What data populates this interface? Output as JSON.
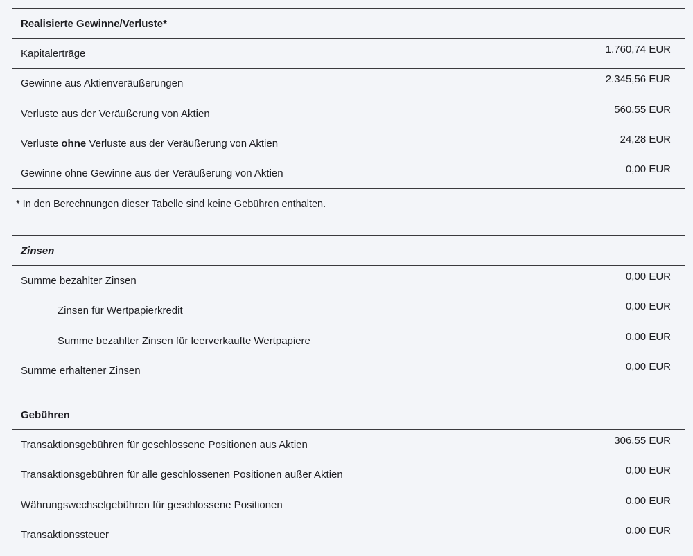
{
  "realized": {
    "title": "Realisierte Gewinne/Verluste*",
    "rows": [
      {
        "label": "Kapitalerträge",
        "value": "1.760,74 EUR"
      },
      {
        "label": "Gewinne aus Aktienveräußerungen",
        "value": "2.345,56 EUR"
      },
      {
        "label": "Verluste aus der Veräußerung von Aktien",
        "value": "560,55 EUR"
      },
      {
        "label_pre": "Verluste ",
        "label_bold": "ohne",
        "label_post": " Verluste aus der Veräußerung von Aktien",
        "value": "24,28 EUR"
      },
      {
        "label": "Gewinne ohne Gewinne aus der Veräußerung von Aktien",
        "value": "0,00 EUR"
      }
    ],
    "footnote": "* In den Berechnungen dieser Tabelle sind keine Gebühren enthalten."
  },
  "interest": {
    "title": "Zinsen",
    "rows": [
      {
        "label": "Summe bezahlter Zinsen",
        "value": "0,00 EUR"
      },
      {
        "label": "Zinsen für Wertpapierkredit",
        "value": "0,00 EUR"
      },
      {
        "label": "Summe bezahlter Zinsen für leerverkaufte Wertpapiere",
        "value": "0,00 EUR"
      },
      {
        "label": "Summe erhaltener Zinsen",
        "value": "0,00 EUR"
      }
    ]
  },
  "fees": {
    "title": "Gebühren",
    "rows": [
      {
        "label": "Transaktionsgebühren für geschlossene Positionen aus Aktien",
        "value": "306,55 EUR"
      },
      {
        "label": "Transaktionsgebühren für alle geschlossenen Positionen außer Aktien",
        "value": "0,00 EUR"
      },
      {
        "label": "Währungswechselgebühren für geschlossene Positionen",
        "value": "0,00 EUR"
      },
      {
        "label": "Transaktionssteuer",
        "value": "0,00 EUR"
      }
    ]
  }
}
